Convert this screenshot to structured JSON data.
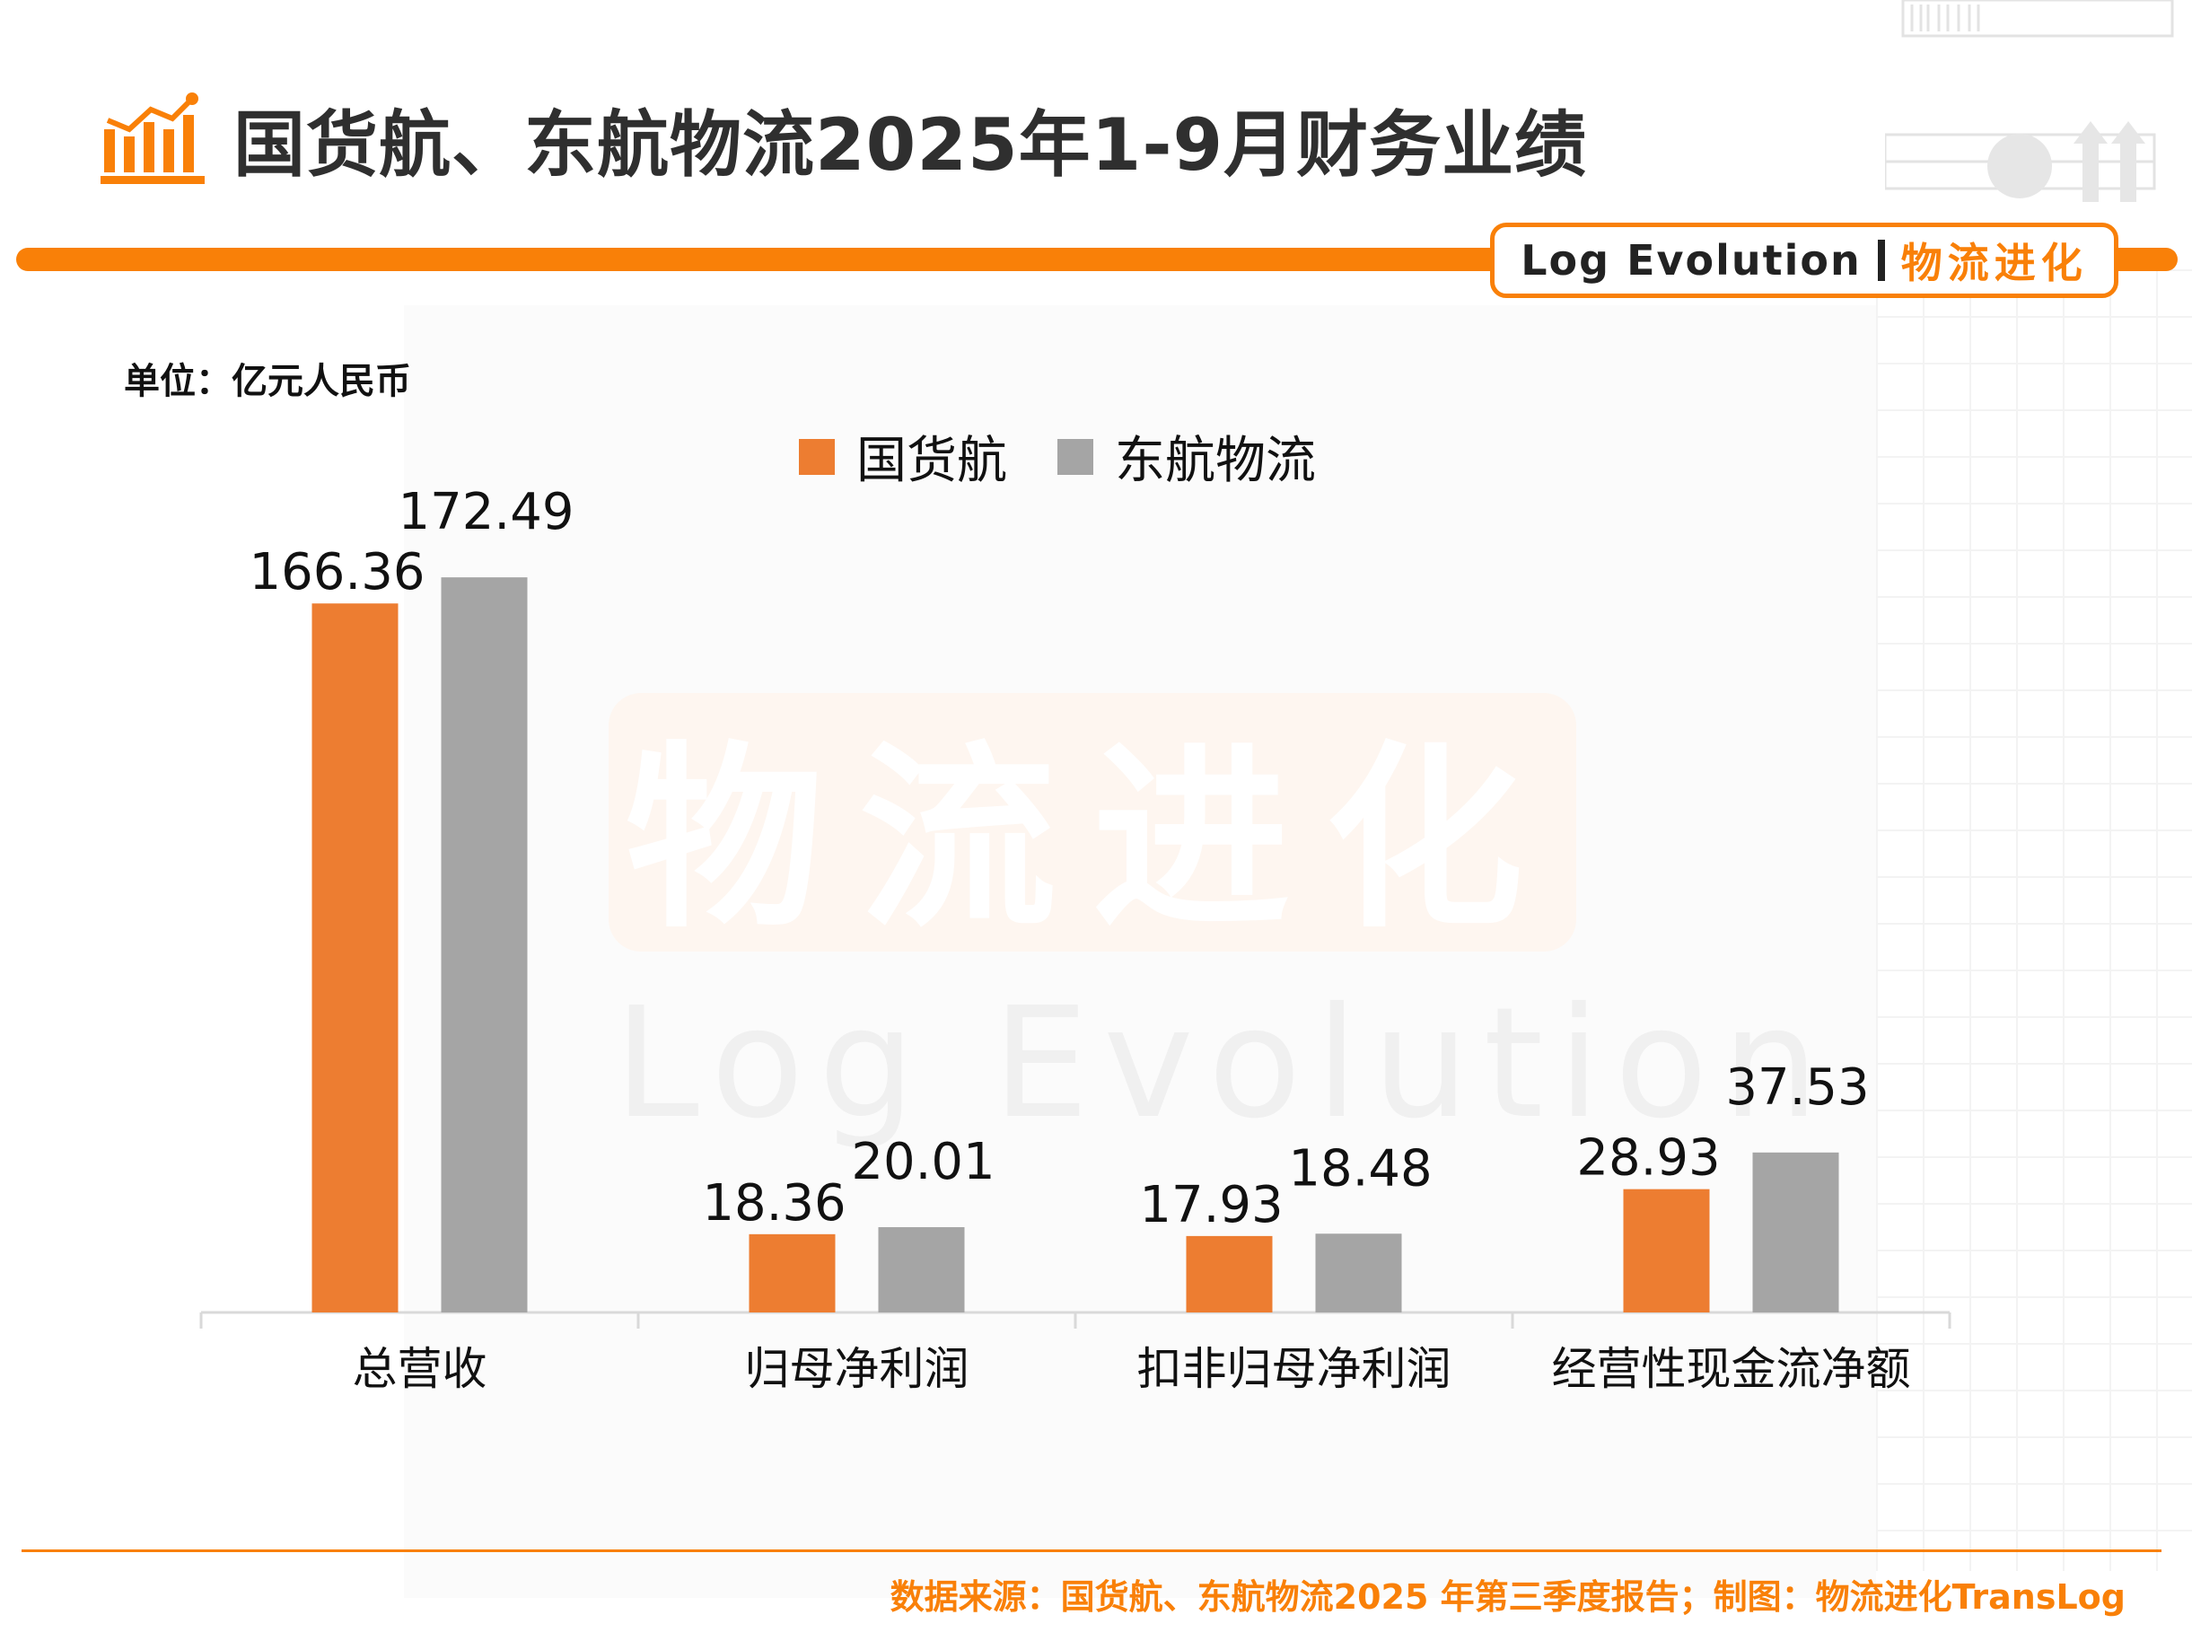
{
  "header": {
    "title": "国货航、东航物流2025年1-9月财务业绩",
    "brand_en": "Log Evolution",
    "brand_cn": "物流进化"
  },
  "unit_label": "单位：亿元人民币",
  "watermark": {
    "cn": "物流进化",
    "en": "Log Evolution"
  },
  "colors": {
    "accent": "#f98008",
    "series1": "#ed7d31",
    "series2": "#a5a5a5"
  },
  "footer": {
    "source": "数据来源：国货航、东航物流2025 年第三季度报告；制图：物流进化TransLog"
  },
  "chart_data": {
    "type": "bar",
    "title": "",
    "xlabel": "",
    "ylabel": "",
    "categories": [
      "总营收",
      "归母净利润",
      "扣非归母净利润",
      "经营性现金流净额"
    ],
    "series": [
      {
        "name": "国货航",
        "values": [
          166.36,
          18.36,
          17.93,
          28.93
        ],
        "labels": [
          "166.36",
          "18.36",
          "17.93",
          "28.93"
        ]
      },
      {
        "name": "东航物流",
        "values": [
          172.49,
          20.01,
          18.48,
          37.53
        ],
        "labels": [
          "172.49",
          "20.01",
          "18.48",
          "37.53"
        ]
      }
    ],
    "ylim": [
      0,
      190
    ],
    "grid": false,
    "legend_position": "top-center"
  }
}
